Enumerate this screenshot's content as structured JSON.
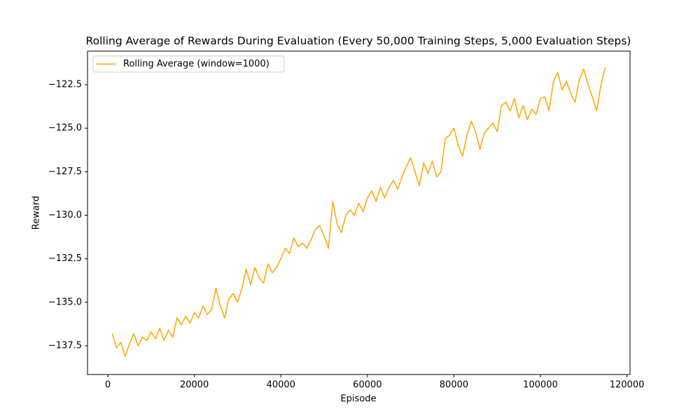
{
  "chart_data": {
    "type": "line",
    "title": "Rolling Average of Rewards During Evaluation (Every 50,000 Training Steps, 5,000 Evaluation Steps)",
    "xlabel": "Episode",
    "ylabel": "Reward",
    "x": [
      1000,
      2000,
      3000,
      4000,
      5000,
      6000,
      7000,
      8000,
      9000,
      10000,
      11000,
      12000,
      13000,
      14000,
      15000,
      16000,
      17000,
      18000,
      19000,
      20000,
      21000,
      22000,
      23000,
      24000,
      25000,
      26000,
      27000,
      28000,
      29000,
      30000,
      31000,
      32000,
      33000,
      34000,
      35000,
      36000,
      37000,
      38000,
      39000,
      40000,
      41000,
      42000,
      43000,
      44000,
      45000,
      46000,
      47000,
      48000,
      49000,
      50000,
      51000,
      52000,
      53000,
      54000,
      55000,
      56000,
      57000,
      58000,
      59000,
      60000,
      61000,
      62000,
      63000,
      64000,
      65000,
      66000,
      67000,
      68000,
      69000,
      70000,
      71000,
      72000,
      73000,
      74000,
      75000,
      76000,
      77000,
      78000,
      79000,
      80000,
      81000,
      82000,
      83000,
      84000,
      85000,
      86000,
      87000,
      88000,
      89000,
      90000,
      91000,
      92000,
      93000,
      94000,
      95000,
      96000,
      97000,
      98000,
      99000,
      100000,
      101000,
      102000,
      103000,
      104000,
      105000,
      106000,
      107000,
      108000,
      109000,
      110000,
      111000,
      112000,
      113000,
      114000,
      115000
    ],
    "series": [
      {
        "name": "Rolling Average (window=1000)",
        "color": "#ffa500",
        "values": [
          -136.8,
          -137.6,
          -137.3,
          -138.1,
          -137.4,
          -136.8,
          -137.5,
          -137.0,
          -137.2,
          -136.7,
          -137.1,
          -136.5,
          -137.2,
          -136.6,
          -137.0,
          -135.9,
          -136.3,
          -135.8,
          -136.2,
          -135.6,
          -135.9,
          -135.2,
          -135.7,
          -135.4,
          -134.2,
          -135.2,
          -135.9,
          -134.8,
          -134.5,
          -135.0,
          -134.2,
          -133.1,
          -134.0,
          -133.0,
          -133.6,
          -133.9,
          -132.8,
          -133.3,
          -133.0,
          -132.5,
          -131.9,
          -132.2,
          -131.3,
          -131.8,
          -131.6,
          -131.9,
          -131.4,
          -130.8,
          -130.6,
          -131.2,
          -131.9,
          -129.2,
          -130.5,
          -131.0,
          -130.0,
          -129.7,
          -130.0,
          -129.3,
          -129.8,
          -129.0,
          -128.6,
          -129.2,
          -128.4,
          -129.0,
          -128.4,
          -128.0,
          -128.5,
          -127.8,
          -127.2,
          -126.7,
          -127.5,
          -128.3,
          -127.0,
          -127.6,
          -126.9,
          -127.8,
          -127.5,
          -125.6,
          -125.4,
          -125.0,
          -126.0,
          -126.6,
          -125.4,
          -124.6,
          -125.2,
          -126.2,
          -125.3,
          -125.0,
          -124.7,
          -125.2,
          -123.7,
          -123.5,
          -124.0,
          -123.3,
          -124.4,
          -123.7,
          -124.5,
          -123.9,
          -124.2,
          -123.3,
          -123.2,
          -124.0,
          -122.3,
          -121.8,
          -122.8,
          -122.3,
          -123.0,
          -123.5,
          -122.2,
          -121.6,
          -122.5,
          -123.2,
          -124.0,
          -122.5,
          -121.5
        ]
      }
    ],
    "xlim": [
      -4700,
      120700
    ],
    "ylim": [
      -139.15,
      -120.57
    ],
    "xticks": [
      0,
      20000,
      40000,
      60000,
      80000,
      100000,
      120000
    ],
    "yticks": [
      {
        "value": -137.5,
        "label": "−137.5"
      },
      {
        "value": -135.0,
        "label": "−135.0"
      },
      {
        "value": -132.5,
        "label": "−132.5"
      },
      {
        "value": -130.0,
        "label": "−130.0"
      },
      {
        "value": -127.5,
        "label": "−127.5"
      },
      {
        "value": -125.0,
        "label": "−125.0"
      },
      {
        "value": -122.5,
        "label": "−122.5"
      }
    ],
    "grid": false,
    "legend": "upper left"
  }
}
